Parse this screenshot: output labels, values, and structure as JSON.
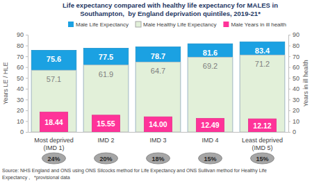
{
  "chart_data": {
    "type": "bar",
    "title": [
      "Life expectancy compared with healthy life expectancy for MALES in",
      "Southampton,  by England deprivation quintiles, 2019-21*"
    ],
    "categories": [
      "Most deprived (IMD 1)",
      "IMD 2",
      "IMD 3",
      "IMD 4",
      "Least deprived (IMD 5)"
    ],
    "series": [
      {
        "name": "Male Life Expectancy",
        "color": "#1ba1e2",
        "values": [
          75.6,
          77.5,
          78.7,
          81.6,
          83.4
        ]
      },
      {
        "name": "Male Healthy Life Expectancy",
        "color": "#e2f0d9",
        "values": [
          57.1,
          61.9,
          64.7,
          69.2,
          71.2
        ]
      },
      {
        "name": "Male Years in ill health",
        "color": "#ff3399",
        "axis": "y2",
        "values": [
          18.44,
          15.55,
          14,
          12.49,
          12.12
        ],
        "value_labels": [
          "18.44",
          "15.55",
          "14.00",
          "12.49",
          "12.12"
        ]
      }
    ],
    "y_label": "Years LE / HLE",
    "y2_label": "Years in ill health",
    "ylim": [
      0,
      90
    ],
    "yticks": [
      0,
      10,
      20,
      30,
      40,
      50,
      60,
      70,
      80,
      90
    ],
    "y2lim": [
      0,
      90
    ],
    "y2ticks": [
      0,
      10,
      20,
      30,
      40,
      50,
      60,
      70,
      80,
      90
    ],
    "data_labels": true,
    "legend": "top",
    "grid": false,
    "annotations": [
      {
        "value": 24,
        "label": "24%"
      },
      {
        "value": 20,
        "label": "20%"
      },
      {
        "value": 18,
        "label": "18%"
      },
      {
        "value": 15,
        "label": "15%"
      },
      {
        "value": 15,
        "label": "15%"
      }
    ],
    "source": [
      "Source: NHS England and ONS using ONS Silcocks method for Life Expectancy and ONS Sullivan method for Healthy Life",
      "Expectancy ,   *provisional data"
    ]
  }
}
